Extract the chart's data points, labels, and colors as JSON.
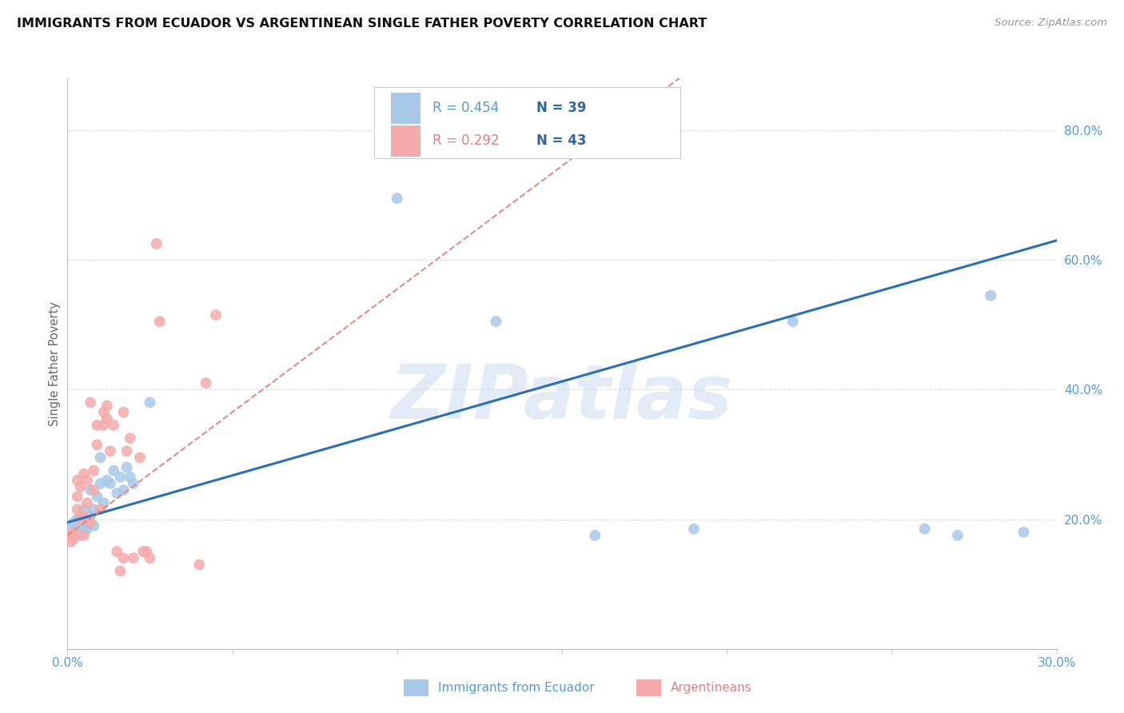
{
  "title": "IMMIGRANTS FROM ECUADOR VS ARGENTINEAN SINGLE FATHER POVERTY CORRELATION CHART",
  "source": "Source: ZipAtlas.com",
  "ylabel": "Single Father Poverty",
  "xlim": [
    0.0,
    0.3
  ],
  "ylim": [
    0.0,
    0.88
  ],
  "yticks_right": [
    0.2,
    0.4,
    0.6,
    0.8
  ],
  "ytick_right_labels": [
    "20.0%",
    "40.0%",
    "60.0%",
    "80.0%"
  ],
  "blue_color": "#a8c8e8",
  "pink_color": "#f4aaaa",
  "blue_line_color": "#2970b8",
  "pink_line_color": "#e88888",
  "legend_R1": "R = 0.454",
  "legend_N1": "N = 39",
  "legend_R2": "R = 0.292",
  "legend_N2": "N = 43",
  "legend_label1": "Immigrants from Ecuador",
  "legend_label2": "Argentineans",
  "watermark": "ZIPatlas",
  "blue_x": [
    0.001,
    0.001,
    0.002,
    0.002,
    0.003,
    0.003,
    0.004,
    0.004,
    0.005,
    0.005,
    0.006,
    0.006,
    0.007,
    0.007,
    0.008,
    0.008,
    0.009,
    0.01,
    0.01,
    0.011,
    0.012,
    0.013,
    0.014,
    0.015,
    0.016,
    0.017,
    0.018,
    0.019,
    0.02,
    0.025,
    0.1,
    0.13,
    0.16,
    0.19,
    0.22,
    0.26,
    0.27,
    0.28,
    0.29
  ],
  "blue_y": [
    0.175,
    0.185,
    0.18,
    0.195,
    0.185,
    0.2,
    0.175,
    0.205,
    0.185,
    0.215,
    0.185,
    0.195,
    0.205,
    0.245,
    0.215,
    0.19,
    0.235,
    0.295,
    0.255,
    0.225,
    0.26,
    0.255,
    0.275,
    0.24,
    0.265,
    0.245,
    0.28,
    0.265,
    0.255,
    0.38,
    0.695,
    0.505,
    0.175,
    0.185,
    0.505,
    0.185,
    0.175,
    0.545,
    0.18
  ],
  "pink_x": [
    0.001,
    0.001,
    0.002,
    0.002,
    0.003,
    0.003,
    0.003,
    0.004,
    0.004,
    0.005,
    0.005,
    0.005,
    0.006,
    0.006,
    0.007,
    0.007,
    0.008,
    0.008,
    0.009,
    0.009,
    0.01,
    0.011,
    0.011,
    0.012,
    0.012,
    0.013,
    0.014,
    0.015,
    0.016,
    0.017,
    0.017,
    0.018,
    0.019,
    0.02,
    0.022,
    0.023,
    0.024,
    0.025,
    0.027,
    0.028,
    0.04,
    0.042,
    0.045
  ],
  "pink_y": [
    0.165,
    0.175,
    0.17,
    0.18,
    0.215,
    0.235,
    0.26,
    0.2,
    0.25,
    0.175,
    0.205,
    0.27,
    0.225,
    0.26,
    0.195,
    0.38,
    0.245,
    0.275,
    0.315,
    0.345,
    0.215,
    0.365,
    0.345,
    0.355,
    0.375,
    0.305,
    0.345,
    0.15,
    0.12,
    0.14,
    0.365,
    0.305,
    0.325,
    0.14,
    0.295,
    0.15,
    0.15,
    0.14,
    0.625,
    0.505,
    0.13,
    0.41,
    0.515
  ],
  "blue_slope": 1.45,
  "blue_intercept": 0.195,
  "pink_slope": 3.8,
  "pink_intercept": 0.175
}
